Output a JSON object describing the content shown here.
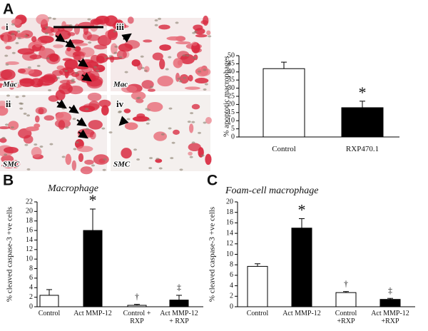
{
  "figure": {
    "panel_labels": [
      "A",
      "B",
      "C"
    ],
    "micrographs": [
      {
        "label": "i",
        "cell": "Mac"
      },
      {
        "label": "iii",
        "cell": "Mac"
      },
      {
        "label": "ii",
        "cell": "SMC"
      },
      {
        "label": "iv",
        "cell": "SMC"
      }
    ]
  },
  "chart_data": [
    {
      "type": "bar",
      "y_label": "% apoptotic macrophages",
      "categories": [
        "Control",
        "RXP470.1"
      ],
      "values": [
        42,
        18
      ],
      "errors": [
        4,
        4
      ],
      "colors": [
        "#ffffff",
        "#000000"
      ],
      "ylim": [
        0,
        50
      ],
      "yticks": [
        0,
        5,
        10,
        15,
        20,
        25,
        30,
        35,
        40,
        45,
        50
      ],
      "annotations": [
        {
          "text": "*",
          "category": 1
        }
      ]
    },
    {
      "type": "bar",
      "title": "Macrophage",
      "y_label": "% cleaved caspase-3 +ve cells",
      "categories": [
        "Control",
        "Act MMP-12",
        "Control + RXP",
        "Act MMP-12 + RXP"
      ],
      "values": [
        2.4,
        16,
        0.3,
        1.4
      ],
      "errors": [
        1.2,
        4.5,
        0.2,
        1.0
      ],
      "colors": [
        "#ffffff",
        "#000000",
        "#ffffff",
        "#000000"
      ],
      "ylim": [
        0,
        22
      ],
      "yticks": [
        0,
        2,
        4,
        6,
        8,
        10,
        12,
        14,
        16,
        18,
        20,
        22
      ],
      "annotations": [
        {
          "text": "*",
          "category": 1
        },
        {
          "text": "†",
          "category": 2
        },
        {
          "text": "‡",
          "category": 3
        }
      ]
    },
    {
      "type": "bar",
      "title": "Foam-cell macrophage",
      "y_label": "% cleaved caspase-3 +ve cells",
      "categories": [
        "Control",
        "Act MMP-12",
        "Control +RXP",
        "Act MMP-12 +RXP"
      ],
      "values": [
        7.7,
        15,
        2.7,
        1.4
      ],
      "errors": [
        0.5,
        1.8,
        0.2,
        0.2
      ],
      "colors": [
        "#ffffff",
        "#000000",
        "#ffffff",
        "#000000"
      ],
      "ylim": [
        0,
        20
      ],
      "yticks": [
        0,
        2,
        4,
        6,
        8,
        10,
        12,
        14,
        16,
        18,
        20
      ],
      "annotations": [
        {
          "text": "*",
          "category": 1
        },
        {
          "text": "†",
          "category": 2
        },
        {
          "text": "‡",
          "category": 3
        }
      ]
    }
  ]
}
